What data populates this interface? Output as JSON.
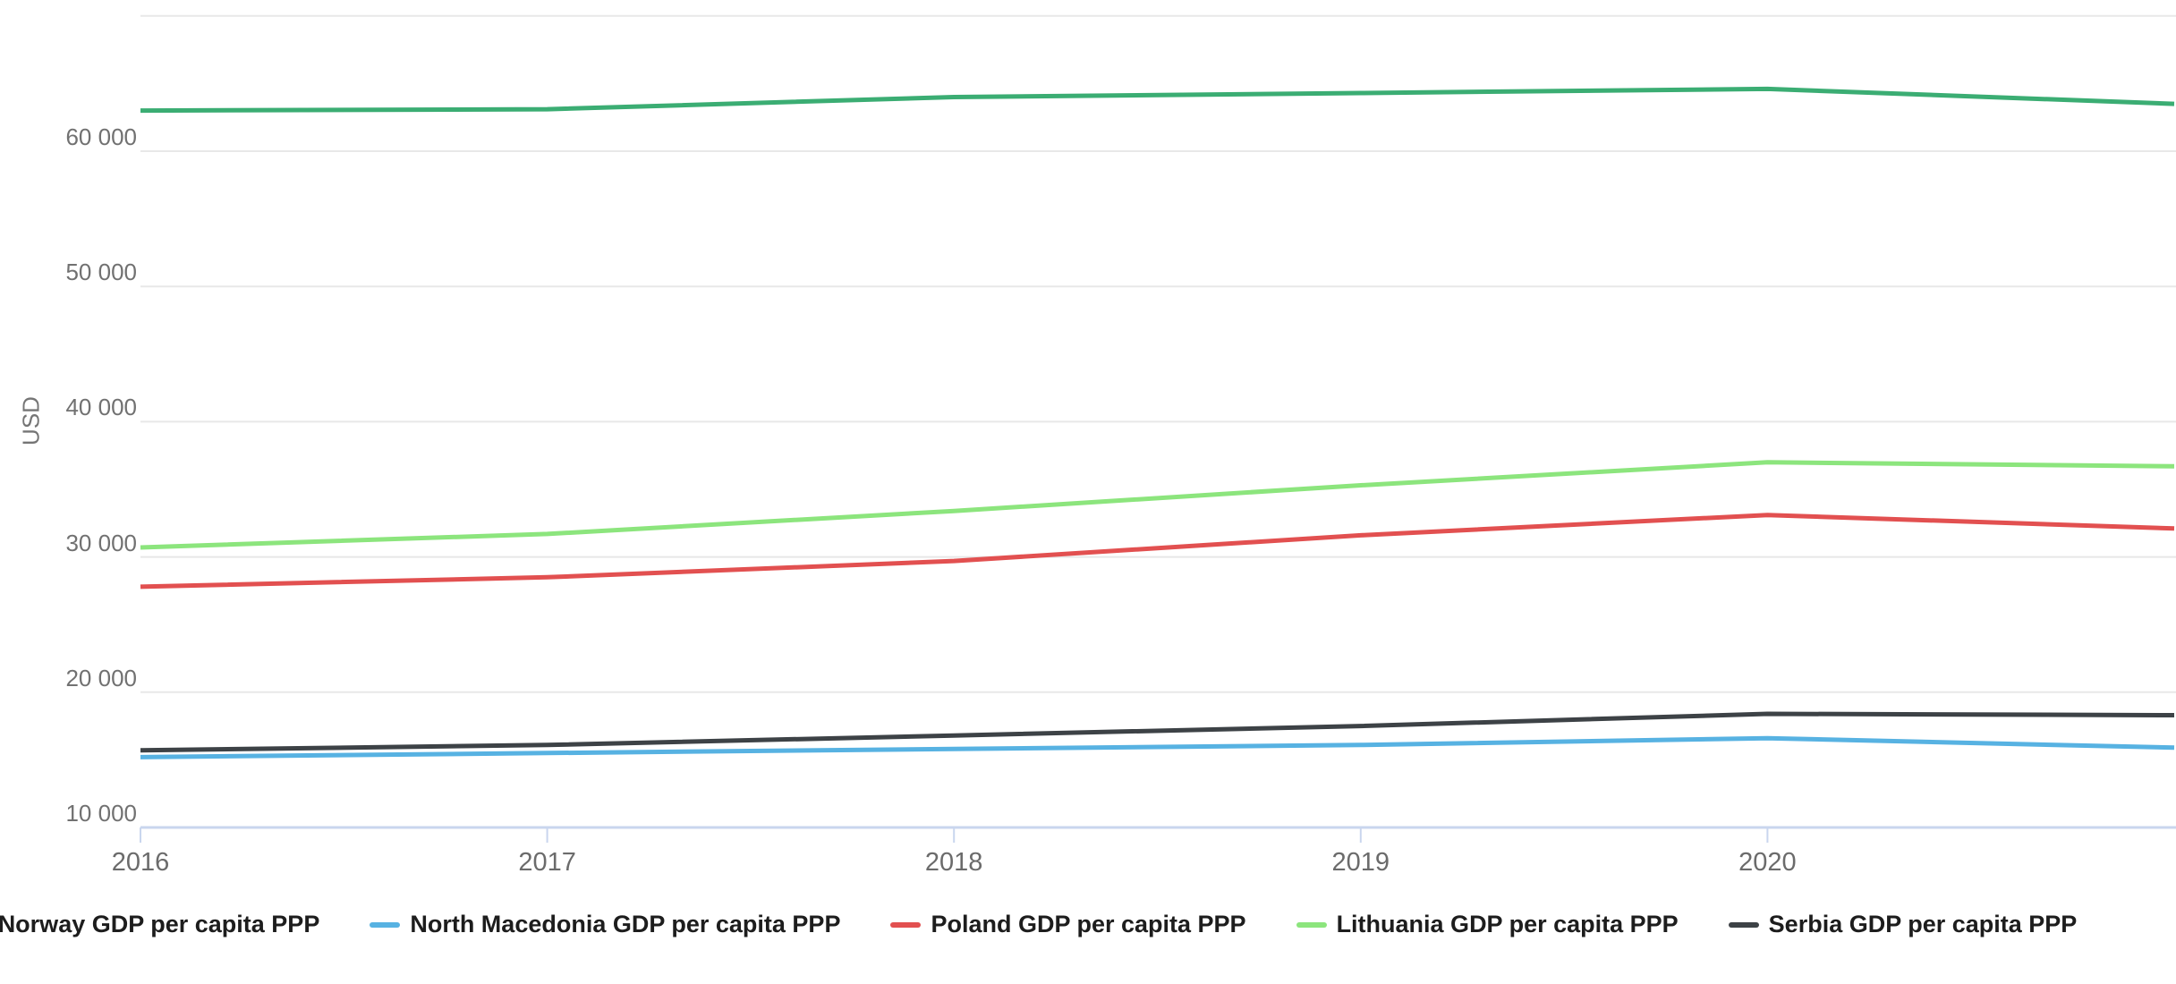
{
  "chart_data": {
    "type": "line",
    "title": "",
    "ylabel": "USD",
    "x": [
      2016,
      2017,
      2018,
      2019,
      2020,
      2021
    ],
    "x_tick_labels": [
      "2016",
      "2017",
      "2018",
      "2019",
      "2020"
    ],
    "x_tick_years": [
      2016,
      2017,
      2018,
      2019,
      2020
    ],
    "ylim": [
      10000,
      70000
    ],
    "y_gridline_values": [
      10000,
      20000,
      30000,
      40000,
      50000,
      60000,
      70000
    ],
    "y_tick_labels": [
      {
        "value": 10000,
        "label": "10 000"
      },
      {
        "value": 20000,
        "label": "20 000"
      },
      {
        "value": 30000,
        "label": "30 000"
      },
      {
        "value": 40000,
        "label": "40 000"
      },
      {
        "value": 50000,
        "label": "50 000"
      },
      {
        "value": 60000,
        "label": "60 000"
      }
    ],
    "grid": "horizontal",
    "legend_position": "bottom",
    "series": [
      {
        "name": "Norway GDP per capita PPP",
        "color": "#3bad73",
        "values": [
          63000,
          63100,
          64000,
          64300,
          64600,
          63500
        ]
      },
      {
        "name": "North Macedonia GDP per capita PPP",
        "color": "#57b2e2",
        "values": [
          15200,
          15500,
          15800,
          16100,
          16600,
          15900
        ]
      },
      {
        "name": "Poland GDP per capita PPP",
        "color": "#e25050",
        "values": [
          27800,
          28500,
          29700,
          31600,
          33100,
          32100
        ]
      },
      {
        "name": "Lithuania GDP per capita PPP",
        "color": "#8ce57d",
        "values": [
          30700,
          31700,
          33400,
          35300,
          37000,
          36700
        ]
      },
      {
        "name": "Serbia GDP per capita PPP",
        "color": "#3d4246",
        "values": [
          15700,
          16100,
          16800,
          17500,
          18400,
          18300
        ]
      }
    ],
    "style": {
      "gridline_color": "#e8e8e8",
      "baseline_color": "#c9d6ee",
      "line_width": 5
    }
  }
}
